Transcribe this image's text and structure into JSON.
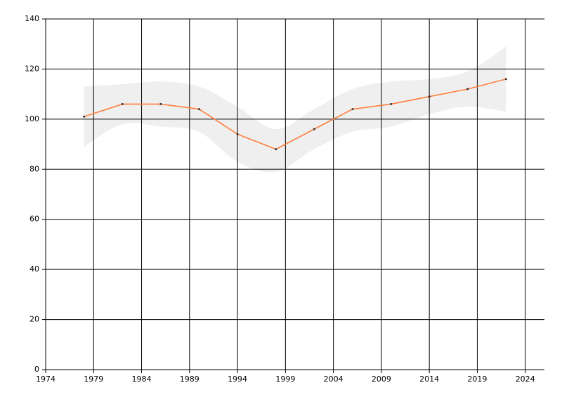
{
  "chart_data": {
    "type": "line",
    "x": [
      1978,
      1982,
      1986,
      1990,
      1994,
      1998,
      2002,
      2006,
      2010,
      2014,
      2018,
      2022
    ],
    "values": [
      101,
      106,
      106,
      104,
      94,
      88,
      96,
      104,
      106,
      109,
      112,
      116
    ],
    "band_upper": [
      113,
      114,
      115,
      113,
      105,
      96,
      104,
      112,
      115,
      116,
      119,
      129
    ],
    "band_lower": [
      89,
      98,
      97,
      95,
      83,
      79,
      88,
      95,
      97,
      102,
      105,
      103
    ],
    "color": "#ff7f3f",
    "band_color": "#efefef",
    "marker_color": "#333333",
    "xlim": [
      1974,
      2026
    ],
    "xticks": [
      1974,
      1979,
      1984,
      1989,
      1994,
      1999,
      2004,
      2009,
      2014,
      2019,
      2024
    ],
    "ylim": [
      0,
      140
    ],
    "yticks": [
      0,
      20,
      40,
      60,
      80,
      100,
      120,
      140
    ],
    "grid": true
  }
}
